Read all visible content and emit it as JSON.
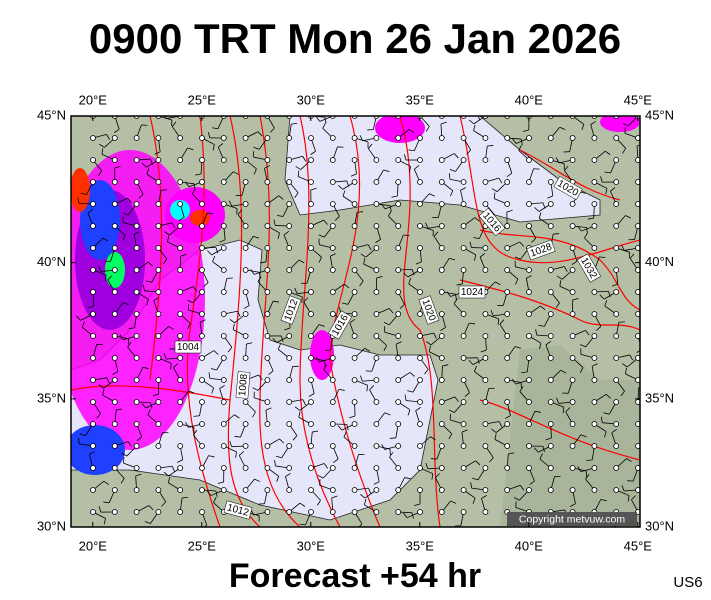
{
  "title": "0900 TRT Mon 26 Jan 2026",
  "map": {
    "lonlim": [
      19,
      45.1
    ],
    "latlim": [
      30,
      45
    ],
    "lonticks": [
      {
        "value": 20,
        "label": "20°E"
      },
      {
        "value": 25,
        "label": "25°E"
      },
      {
        "value": 30,
        "label": "30°E"
      },
      {
        "value": 35,
        "label": "35°E"
      },
      {
        "value": 40,
        "label": "40°E"
      },
      {
        "value": 45,
        "label": "45°E"
      }
    ],
    "latticks": [
      {
        "value": 30,
        "label": "30°N"
      },
      {
        "value": 35,
        "label": "35°N"
      },
      {
        "value": 40,
        "label": "40°N"
      },
      {
        "value": 45,
        "label": "45°N"
      }
    ],
    "isobar_labels": [
      1020,
      1016,
      1028,
      1032,
      1024,
      1020,
      1012,
      1016,
      1008,
      1004,
      1012
    ]
  },
  "copyright": "Copyright metvuw.com",
  "footer": "Forecast +54 hr",
  "code": "US6"
}
